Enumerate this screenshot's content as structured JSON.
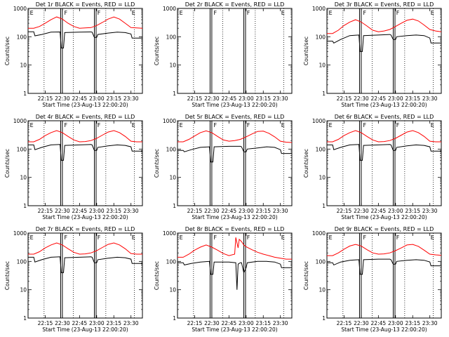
{
  "x_tick_labels": [
    "22:15",
    "22:30",
    "22:45",
    "23:00",
    "23:15",
    "23:30"
  ],
  "y_tick_labels": [
    "1",
    "10",
    "100",
    "1000"
  ],
  "ylabel": "Counts/sec",
  "xlabel": "Start Time (23-Aug-13 22:00:20)",
  "flag_labels": [
    "E",
    "F",
    "F",
    "E"
  ],
  "colors": {
    "events": "#000000",
    "lld": "#ff0000"
  },
  "chart_data": [
    {
      "type": "line",
      "title": "Det 1r BLACK = Events, RED = LLD",
      "x_range_min": [
        0,
        100
      ],
      "y_log_range": [
        1,
        1000
      ],
      "y_scale": "log",
      "dotted_x_min": [
        14,
        39.5,
        68,
        93
      ],
      "solid_x_min": [
        28.5,
        30,
        58,
        59.5
      ],
      "series": [
        {
          "name": "Events",
          "x_min": [
            0,
            5,
            6,
            12,
            20,
            28,
            29,
            31,
            32,
            45,
            55,
            56,
            58,
            60,
            61,
            70,
            78,
            85,
            90,
            91,
            100
          ],
          "values": [
            150,
            150,
            108,
            120,
            145,
            148,
            40,
            40,
            140,
            145,
            148,
            145,
            95,
            95,
            120,
            135,
            145,
            140,
            125,
            90,
            90
          ]
        },
        {
          "name": "LLD",
          "x_min": [
            0,
            5,
            10,
            15,
            20,
            25,
            30,
            35,
            40,
            45,
            50,
            55,
            60,
            65,
            70,
            75,
            80,
            85,
            90,
            95,
            100
          ],
          "values": [
            200,
            200,
            230,
            300,
            400,
            500,
            420,
            300,
            230,
            200,
            205,
            210,
            250,
            320,
            420,
            500,
            420,
            300,
            210,
            205,
            200
          ]
        }
      ]
    },
    {
      "type": "line",
      "title": "Det 2r BLACK = Events, RED = LLD",
      "x_range_min": [
        0,
        100
      ],
      "y_log_range": [
        1,
        1000
      ],
      "y_scale": "log",
      "dotted_x_min": [
        14,
        39.5,
        68,
        93
      ],
      "solid_x_min": [
        28.5,
        30,
        58,
        59.5
      ],
      "series": []
    },
    {
      "type": "line",
      "title": "Det 3r BLACK = Events, RED = LLD",
      "x_range_min": [
        0,
        100
      ],
      "y_log_range": [
        1,
        1000
      ],
      "y_scale": "log",
      "dotted_x_min": [
        14,
        39.5,
        68,
        93
      ],
      "solid_x_min": [
        28.5,
        30,
        58,
        59.5
      ],
      "series": [
        {
          "name": "Events",
          "x_min": [
            0,
            5,
            6,
            12,
            20,
            28,
            29,
            31,
            32,
            45,
            55,
            56,
            58,
            60,
            61,
            70,
            78,
            85,
            90,
            91,
            100
          ],
          "values": [
            70,
            70,
            60,
            80,
            110,
            115,
            30,
            30,
            110,
            115,
            120,
            115,
            80,
            80,
            100,
            110,
            115,
            110,
            90,
            60,
            60
          ]
        },
        {
          "name": "LLD",
          "x_min": [
            0,
            5,
            10,
            15,
            20,
            25,
            30,
            35,
            40,
            45,
            50,
            55,
            60,
            65,
            70,
            75,
            80,
            85,
            90,
            95,
            100
          ],
          "values": [
            130,
            130,
            170,
            250,
            330,
            400,
            330,
            240,
            170,
            150,
            160,
            180,
            230,
            300,
            380,
            420,
            360,
            260,
            180,
            160,
            150
          ]
        }
      ]
    },
    {
      "type": "line",
      "title": "Det 4r BLACK = Events, RED = LLD",
      "x_range_min": [
        0,
        100
      ],
      "y_log_range": [
        1,
        1000
      ],
      "y_scale": "log",
      "dotted_x_min": [
        14,
        39.5,
        68,
        93
      ],
      "solid_x_min": [
        28.5,
        30,
        58,
        59.5
      ],
      "series": [
        {
          "name": "Events",
          "x_min": [
            0,
            5,
            6,
            12,
            20,
            28,
            29,
            31,
            32,
            45,
            55,
            56,
            58,
            60,
            61,
            70,
            78,
            85,
            90,
            91,
            100
          ],
          "values": [
            140,
            140,
            95,
            115,
            140,
            145,
            40,
            40,
            135,
            140,
            145,
            140,
            90,
            90,
            115,
            130,
            140,
            135,
            120,
            85,
            85
          ]
        },
        {
          "name": "LLD",
          "x_min": [
            0,
            5,
            10,
            15,
            20,
            25,
            30,
            35,
            40,
            45,
            50,
            55,
            60,
            65,
            70,
            75,
            80,
            85,
            90,
            95,
            100
          ],
          "values": [
            180,
            180,
            220,
            300,
            380,
            450,
            380,
            280,
            210,
            180,
            185,
            200,
            240,
            310,
            400,
            450,
            380,
            280,
            190,
            180,
            180
          ]
        }
      ]
    },
    {
      "type": "line",
      "title": "Det 5r BLACK = Events, RED = LLD",
      "x_range_min": [
        0,
        100
      ],
      "y_log_range": [
        1,
        1000
      ],
      "y_scale": "log",
      "dotted_x_min": [
        14,
        39.5,
        68,
        93
      ],
      "solid_x_min": [
        28.5,
        30,
        58,
        59.5
      ],
      "series": [
        {
          "name": "Events",
          "x_min": [
            0,
            5,
            6,
            12,
            20,
            28,
            29,
            31,
            32,
            45,
            55,
            56,
            58,
            60,
            61,
            70,
            78,
            85,
            90,
            91,
            100
          ],
          "values": [
            90,
            90,
            80,
            95,
            115,
            120,
            35,
            35,
            120,
            125,
            125,
            120,
            80,
            80,
            100,
            110,
            120,
            115,
            95,
            70,
            70
          ]
        },
        {
          "name": "LLD",
          "x_min": [
            0,
            5,
            10,
            15,
            20,
            25,
            30,
            35,
            40,
            45,
            50,
            55,
            60,
            65,
            70,
            75,
            80,
            85,
            90,
            95,
            100
          ],
          "values": [
            180,
            180,
            220,
            290,
            380,
            440,
            380,
            280,
            210,
            190,
            200,
            220,
            270,
            340,
            420,
            430,
            360,
            270,
            190,
            175,
            170
          ]
        }
      ]
    },
    {
      "type": "line",
      "title": "Det 6r BLACK = Events, RED = LLD",
      "x_range_min": [
        0,
        100
      ],
      "y_log_range": [
        1,
        1000
      ],
      "y_scale": "log",
      "dotted_x_min": [
        14,
        39.5,
        68,
        93
      ],
      "solid_x_min": [
        28.5,
        30,
        58,
        59.5
      ],
      "series": [
        {
          "name": "Events",
          "x_min": [
            0,
            5,
            6,
            12,
            20,
            28,
            29,
            31,
            32,
            45,
            55,
            56,
            58,
            60,
            61,
            70,
            78,
            85,
            90,
            91,
            100
          ],
          "values": [
            140,
            140,
            95,
            115,
            140,
            145,
            40,
            40,
            135,
            140,
            145,
            140,
            90,
            90,
            115,
            130,
            140,
            135,
            120,
            85,
            85
          ]
        },
        {
          "name": "LLD",
          "x_min": [
            0,
            5,
            10,
            15,
            20,
            25,
            30,
            35,
            40,
            45,
            50,
            55,
            60,
            65,
            70,
            75,
            80,
            85,
            90,
            95,
            100
          ],
          "values": [
            180,
            180,
            220,
            300,
            380,
            450,
            380,
            280,
            210,
            180,
            185,
            200,
            240,
            310,
            400,
            450,
            380,
            280,
            190,
            180,
            180
          ]
        }
      ]
    },
    {
      "type": "line",
      "title": "Det 7r BLACK = Events, RED = LLD",
      "x_range_min": [
        0,
        100
      ],
      "y_log_range": [
        1,
        1000
      ],
      "y_scale": "log",
      "dotted_x_min": [
        14,
        39.5,
        68,
        93
      ],
      "solid_x_min": [
        28.5,
        30,
        58,
        59.5
      ],
      "series": [
        {
          "name": "Events",
          "x_min": [
            0,
            5,
            6,
            12,
            20,
            28,
            29,
            31,
            32,
            45,
            55,
            56,
            58,
            60,
            61,
            70,
            78,
            85,
            90,
            91,
            100
          ],
          "values": [
            140,
            140,
            95,
            115,
            140,
            145,
            40,
            40,
            135,
            140,
            145,
            140,
            90,
            90,
            115,
            130,
            140,
            135,
            120,
            85,
            85
          ]
        },
        {
          "name": "LLD",
          "x_min": [
            0,
            5,
            10,
            15,
            20,
            25,
            30,
            35,
            40,
            45,
            50,
            55,
            60,
            65,
            70,
            75,
            80,
            85,
            90,
            95,
            100
          ],
          "values": [
            180,
            180,
            220,
            300,
            380,
            450,
            380,
            280,
            210,
            180,
            185,
            200,
            240,
            310,
            400,
            450,
            380,
            280,
            190,
            180,
            180
          ]
        }
      ]
    },
    {
      "type": "line",
      "title": "Det 8r BLACK = Events, RED = LLD",
      "x_range_min": [
        0,
        100
      ],
      "y_log_range": [
        1,
        1000
      ],
      "y_scale": "log",
      "dotted_x_min": [
        14,
        39.5,
        68,
        93
      ],
      "solid_x_min": [
        28.5,
        30,
        58,
        59.5
      ],
      "series": [
        {
          "name": "Events",
          "x_min": [
            0,
            5,
            6,
            12,
            20,
            28,
            29,
            31,
            32,
            45,
            51,
            52,
            53,
            55,
            56,
            58,
            60,
            61,
            70,
            78,
            85,
            90,
            91,
            100
          ],
          "values": [
            90,
            90,
            75,
            85,
            95,
            100,
            35,
            35,
            95,
            95,
            90,
            10,
            80,
            90,
            90,
            40,
            60,
            90,
            100,
            100,
            95,
            80,
            60,
            60
          ]
        },
        {
          "name": "LLD",
          "x_min": [
            0,
            5,
            10,
            15,
            20,
            25,
            30,
            35,
            40,
            45,
            50,
            51,
            53,
            54,
            56,
            58,
            60,
            65,
            70,
            75,
            80,
            85,
            90,
            95,
            100
          ],
          "values": [
            140,
            140,
            180,
            250,
            320,
            380,
            320,
            250,
            190,
            160,
            180,
            700,
            300,
            600,
            500,
            380,
            330,
            260,
            210,
            180,
            160,
            140,
            130,
            120,
            120
          ]
        }
      ]
    },
    {
      "type": "line",
      "title": "Det 9r BLACK = Events, RED = LLD",
      "x_range_min": [
        0,
        100
      ],
      "y_log_range": [
        1,
        1000
      ],
      "y_scale": "log",
      "dotted_x_min": [
        14,
        39.5,
        68,
        93
      ],
      "solid_x_min": [
        28.5,
        30,
        58,
        59.5
      ],
      "series": [
        {
          "name": "Events",
          "x_min": [
            0,
            5,
            6,
            12,
            20,
            28,
            29,
            31,
            32,
            45,
            55,
            56,
            58,
            60,
            61,
            70,
            78,
            85,
            90,
            91,
            100
          ],
          "values": [
            90,
            90,
            75,
            95,
            110,
            115,
            35,
            35,
            115,
            120,
            120,
            115,
            80,
            80,
            100,
            110,
            115,
            110,
            95,
            70,
            70
          ]
        },
        {
          "name": "LLD",
          "x_min": [
            0,
            5,
            10,
            15,
            20,
            25,
            30,
            35,
            40,
            45,
            50,
            55,
            60,
            65,
            70,
            75,
            80,
            85,
            90,
            95,
            100
          ],
          "values": [
            160,
            160,
            200,
            270,
            350,
            400,
            350,
            260,
            200,
            180,
            185,
            200,
            240,
            300,
            380,
            400,
            340,
            250,
            180,
            170,
            165
          ]
        }
      ]
    }
  ]
}
